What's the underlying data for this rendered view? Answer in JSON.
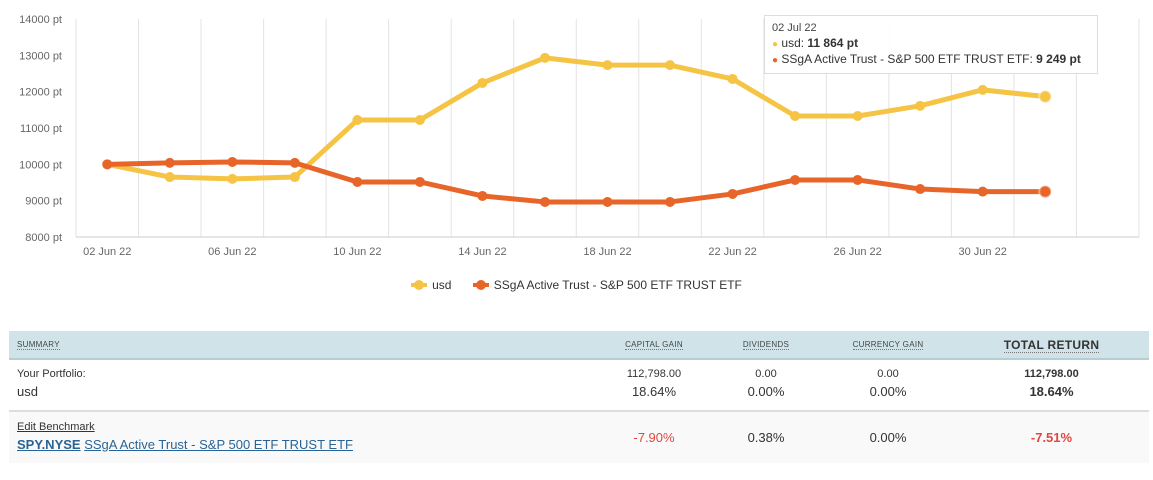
{
  "chart_data": {
    "type": "line",
    "x": [
      "02 Jun 22",
      "04 Jun 22",
      "06 Jun 22",
      "08 Jun 22",
      "10 Jun 22",
      "12 Jun 22",
      "14 Jun 22",
      "16 Jun 22",
      "18 Jun 22",
      "20 Jun 22",
      "22 Jun 22",
      "24 Jun 22",
      "26 Jun 22",
      "28 Jun 22",
      "30 Jun 22",
      "02 Jul 22"
    ],
    "x_tick_labels": [
      "02 Jun 22",
      "06 Jun 22",
      "10 Jun 22",
      "14 Jun 22",
      "18 Jun 22",
      "22 Jun 22",
      "26 Jun 22",
      "30 Jun 22"
    ],
    "y_tick_labels": [
      "14000 pt",
      "13000 pt",
      "12000 pt",
      "11000 pt",
      "10000 pt",
      "9000 pt",
      "8000 pt"
    ],
    "ylim": [
      8000,
      14000
    ],
    "grid": "vertical",
    "legend_placement": "bottom-center",
    "series": [
      {
        "name": "usd",
        "color": "#f6c445",
        "values": [
          10000,
          9650,
          9600,
          9650,
          11220,
          11220,
          12240,
          12930,
          12730,
          12730,
          12350,
          11330,
          11330,
          11610,
          12050,
          11864
        ]
      },
      {
        "name": "SSgA Active Trust - S&P 500 ETF TRUST ETF",
        "color": "#e8652a",
        "values": [
          10000,
          10040,
          10065,
          10040,
          9515,
          9515,
          9130,
          8965,
          8965,
          8965,
          9185,
          9570,
          9570,
          9320,
          9249,
          9249
        ]
      }
    ]
  },
  "tooltip": {
    "date": "02 Jul 22",
    "usd_label": "usd: ",
    "usd_value": "11 864 pt",
    "ssga_label": "SSgA Active Trust - S&P 500 ETF TRUST ETF: ",
    "ssga_value": "9 249 pt"
  },
  "legend": [
    "usd",
    "SSgA Active Trust - S&P 500 ETF TRUST ETF"
  ],
  "table": {
    "headers": {
      "summary": "Summary",
      "capital_gain": "Capital Gain",
      "dividends": "Dividends",
      "currency_gain": "Currency Gain",
      "total_return": "Total Return"
    },
    "portfolio": {
      "label": "Your Portfolio:",
      "name": "usd",
      "capital_gain_amount": "112,798.00",
      "capital_gain_pct": "18.64%",
      "dividends_amount": "0.00",
      "dividends_pct": "0.00%",
      "currency_amount": "0.00",
      "currency_pct": "0.00%",
      "total_amount": "112,798.00",
      "total_pct": "18.64%"
    },
    "benchmark": {
      "edit_label": "Edit Benchmark",
      "ticker": "SPY.NYSE",
      "name": "SSgA Active Trust - S&P 500 ETF TRUST ETF",
      "capital_gain_pct": "-7.90%",
      "dividends_pct": "0.38%",
      "currency_pct": "0.00%",
      "total_pct": "-7.51%"
    }
  }
}
